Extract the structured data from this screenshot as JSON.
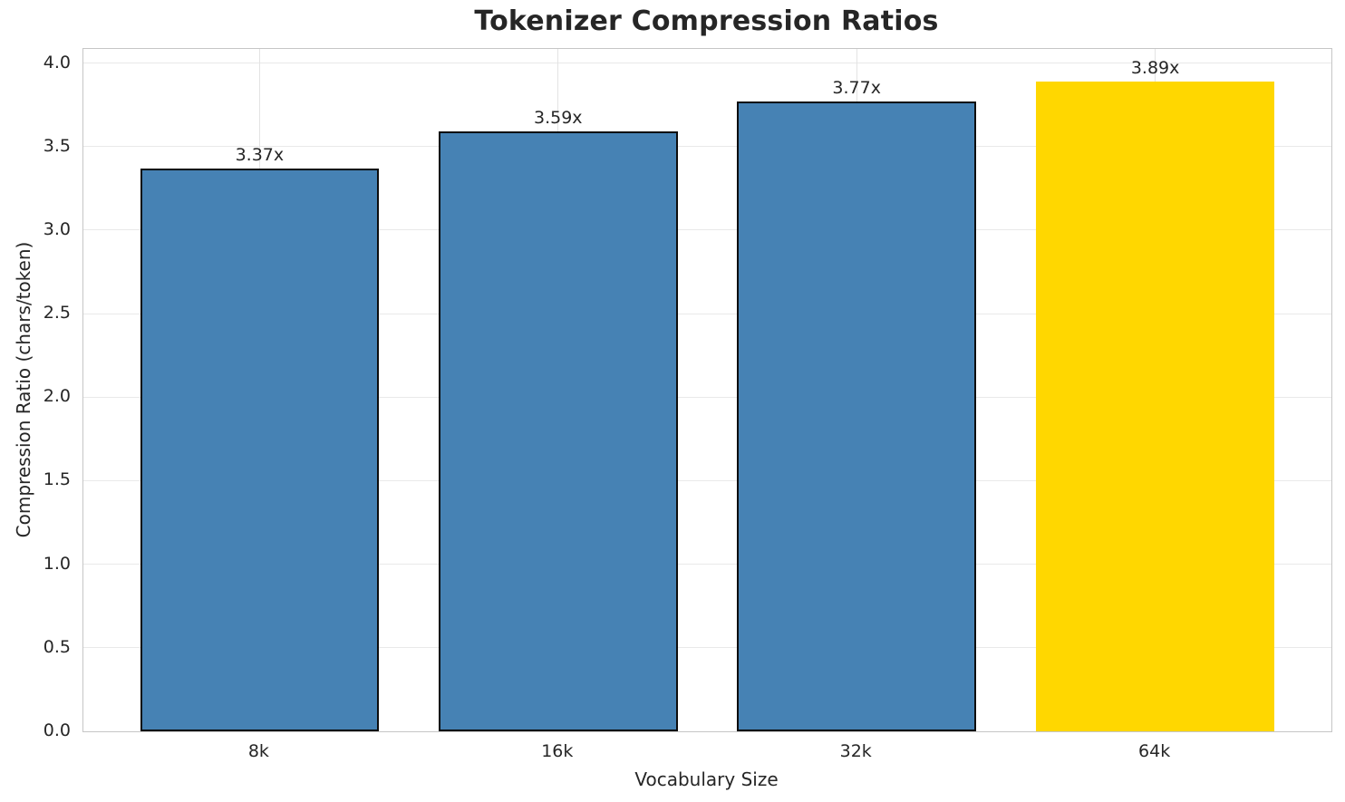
{
  "title": "Tokenizer Compression Ratios",
  "chart_data": {
    "type": "bar",
    "title": "Tokenizer Compression Ratios",
    "xlabel": "Vocabulary Size",
    "ylabel": "Compression Ratio (chars/token)",
    "categories": [
      "8k",
      "16k",
      "32k",
      "64k"
    ],
    "values": [
      3.37,
      3.59,
      3.77,
      3.89
    ],
    "bar_labels": [
      "3.37x",
      "3.59x",
      "3.77x",
      "3.89x"
    ],
    "yticks": [
      0.0,
      0.5,
      1.0,
      1.5,
      2.0,
      2.5,
      3.0,
      3.5,
      4.0
    ],
    "ytick_labels": [
      "0.0",
      "0.5",
      "1.0",
      "1.5",
      "2.0",
      "2.5",
      "3.0",
      "3.5",
      "4.0"
    ],
    "ylim": [
      0,
      4.0845
    ],
    "xlim": [
      -0.59,
      3.59
    ],
    "bar_width_units": 0.8,
    "grid": true,
    "legend": "none",
    "colors": {
      "bar_default": "#4682B4",
      "bar_highlight": "#FFD700",
      "highlight_index": 3,
      "bar_edge": "#0d0d0d",
      "grid_h": "#e9e9e9",
      "grid_v": "#e3e3e3",
      "spine": "#c6c6c6",
      "text": "#262626"
    }
  }
}
